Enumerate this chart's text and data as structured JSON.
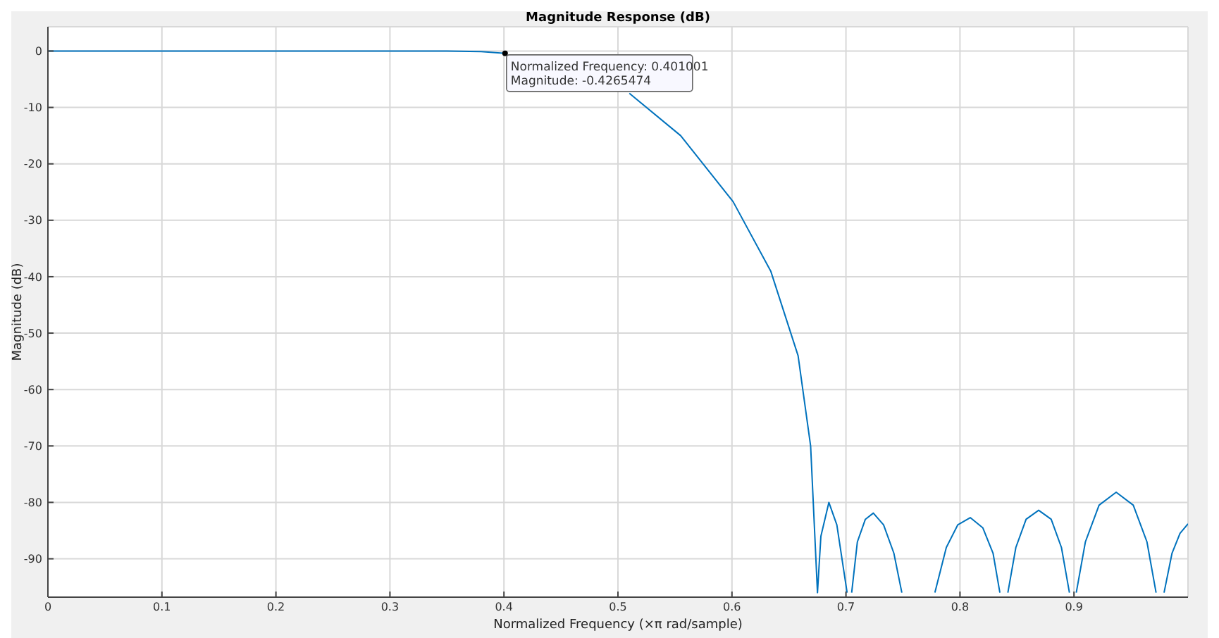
{
  "chart_data": {
    "type": "line",
    "title": "Magnitude Response (dB)",
    "xlabel": "Normalized Frequency (×π rad/sample)",
    "ylabel": "Magnitude (dB)",
    "series": [
      {
        "color": "#0072bd",
        "x": [
          0,
          0.1,
          0.2,
          0.3,
          0.35,
          0.38,
          0.401001,
          0.43,
          0.46,
          0.51,
          0.555,
          0.601,
          0.634,
          0.658,
          0.669,
          0.675,
          0.678,
          0.685,
          0.692,
          0.698,
          0.701,
          0.703,
          0.705,
          0.71,
          0.717,
          0.724,
          0.733,
          0.742,
          0.749,
          0.763,
          0.778,
          0.788,
          0.798,
          0.809,
          0.82,
          0.829,
          0.835,
          0.838,
          0.842,
          0.849,
          0.858,
          0.869,
          0.88,
          0.889,
          0.896,
          0.899,
          0.902,
          0.91,
          0.922,
          0.937,
          0.952,
          0.964,
          0.972,
          0.975,
          0.979,
          0.986,
          0.993,
          1.0
        ],
        "values": [
          0,
          0,
          0,
          0,
          0,
          -0.1,
          -0.4,
          null,
          null,
          -7.5,
          -15,
          -26.7,
          -39,
          -54,
          -70,
          -96,
          -86,
          -80,
          -84,
          -92,
          -96,
          null,
          -96,
          -87,
          -83,
          -81.9,
          -84,
          -89,
          -96,
          null,
          -96,
          -88,
          -84,
          -82.7,
          -84.5,
          -89,
          -96,
          null,
          -96,
          -88,
          -83,
          -81.4,
          -83,
          -88,
          -96,
          null,
          -96,
          -87,
          -80.5,
          -78.2,
          -80.5,
          -87,
          -96,
          null,
          -96,
          -89,
          -85.5,
          -83.8
        ]
      }
    ],
    "xlim": [
      0,
      1.0
    ],
    "xticks": [
      0,
      0.1,
      0.2,
      0.3,
      0.4,
      0.5,
      0.6,
      0.7,
      0.8,
      0.9
    ],
    "ylim": [
      -96.8,
      4.3
    ],
    "yticks": [
      0,
      -10,
      -20,
      -30,
      -40,
      -50,
      -60,
      -70,
      -80,
      -90
    ],
    "grid": true,
    "line_style": "solid",
    "marker": "none",
    "annotations": [
      {
        "text": "Normalized Frequency: 0.401001\nMagnitude: -0.4265474",
        "x": 0.401001,
        "y": -0.4265474
      }
    ]
  }
}
